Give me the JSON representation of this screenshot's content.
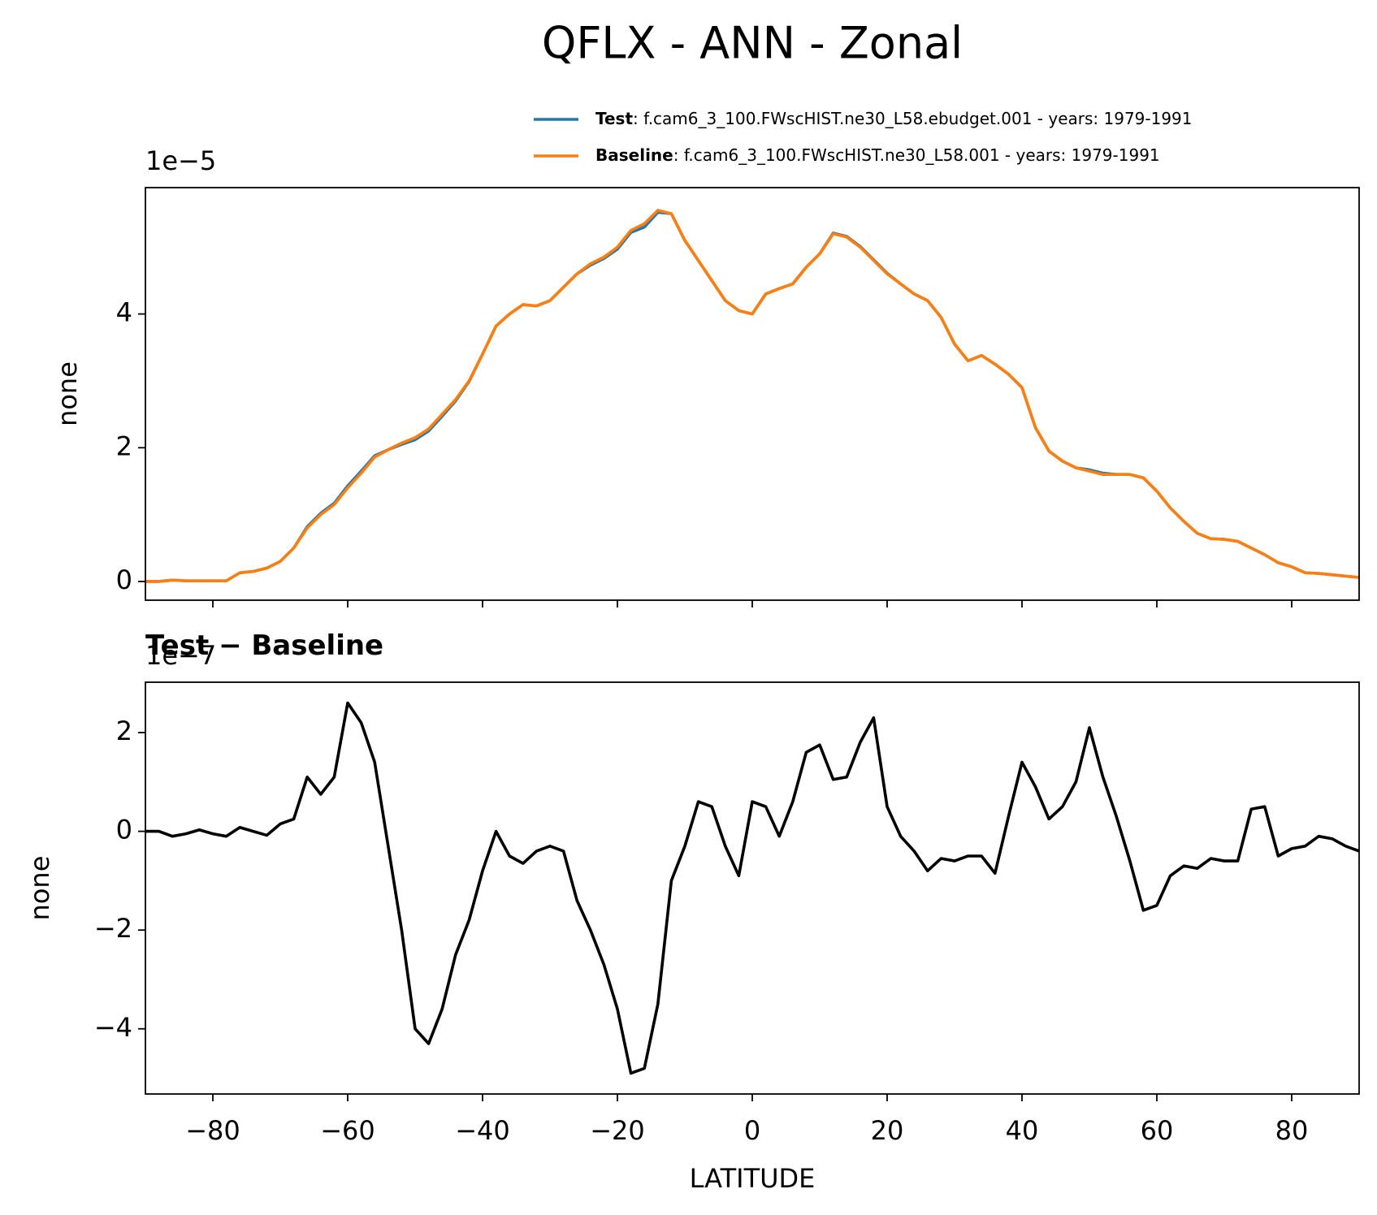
{
  "title": "QFLX - ANN - Zonal",
  "chart_data": [
    {
      "type": "line",
      "offset_text": "1e−5",
      "ylabel": "none",
      "x": [
        -90,
        -88,
        -86,
        -84,
        -82,
        -80,
        -78,
        -76,
        -74,
        -72,
        -70,
        -68,
        -66,
        -64,
        -62,
        -60,
        -58,
        -56,
        -54,
        -52,
        -50,
        -48,
        -46,
        -44,
        -42,
        -40,
        -38,
        -36,
        -34,
        -32,
        -30,
        -28,
        -26,
        -24,
        -22,
        -20,
        -18,
        -16,
        -14,
        -12,
        -10,
        -8,
        -6,
        -4,
        -2,
        0,
        2,
        4,
        6,
        8,
        10,
        12,
        14,
        16,
        18,
        20,
        22,
        24,
        26,
        28,
        30,
        32,
        34,
        36,
        38,
        40,
        42,
        44,
        46,
        48,
        50,
        52,
        54,
        56,
        58,
        60,
        62,
        64,
        66,
        68,
        70,
        72,
        74,
        76,
        78,
        80,
        82,
        84,
        86,
        88,
        90
      ],
      "series": [
        {
          "name": "Test",
          "description": ": f.cam6_3_100.FWscHIST.ne30_L58.ebudget.001 - years: 1979-1991",
          "color": "#1f77b4",
          "values": [
            0,
            0,
            0.02,
            0.01,
            0.01,
            0.01,
            0.01,
            0.13,
            0.15,
            0.2,
            0.3,
            0.5,
            0.82,
            1.02,
            1.17,
            1.43,
            1.65,
            1.88,
            1.97,
            2.05,
            2.12,
            2.25,
            2.47,
            2.7,
            2.99,
            3.4,
            3.82,
            4.0,
            4.14,
            4.12,
            4.2,
            4.4,
            4.6,
            4.73,
            4.83,
            4.97,
            5.22,
            5.3,
            5.52,
            5.5,
            5.1,
            4.8,
            4.5,
            4.2,
            4.05,
            4.0,
            4.3,
            4.38,
            4.45,
            4.7,
            4.9,
            5.21,
            5.16,
            5.01,
            4.81,
            4.61,
            4.45,
            4.3,
            4.2,
            3.95,
            3.55,
            3.3,
            3.38,
            3.25,
            3.1,
            2.9,
            2.3,
            1.95,
            1.8,
            1.7,
            1.67,
            1.62,
            1.6,
            1.6,
            1.55,
            1.35,
            1.1,
            0.9,
            0.72,
            0.64,
            0.63,
            0.6,
            0.5,
            0.4,
            0.28,
            0.22,
            0.13,
            0.12,
            0.1,
            0.08,
            0.06
          ]
        },
        {
          "name": "Baseline",
          "description": ": f.cam6_3_100.FWscHIST.ne30_L58.001 - years: 1979-1991",
          "color": "#ff7f0e",
          "values": [
            0,
            0,
            0.02,
            0.01,
            0.01,
            0.01,
            0.01,
            0.13,
            0.15,
            0.2,
            0.3,
            0.5,
            0.8,
            1.0,
            1.15,
            1.4,
            1.62,
            1.86,
            1.97,
            2.07,
            2.15,
            2.28,
            2.5,
            2.72,
            3.0,
            3.4,
            3.82,
            4.0,
            4.14,
            4.12,
            4.2,
            4.4,
            4.6,
            4.75,
            4.85,
            5.0,
            5.25,
            5.35,
            5.55,
            5.5,
            5.1,
            4.8,
            4.5,
            4.2,
            4.05,
            4.0,
            4.3,
            4.38,
            4.45,
            4.7,
            4.9,
            5.2,
            5.15,
            5.0,
            4.8,
            4.6,
            4.45,
            4.3,
            4.2,
            3.95,
            3.55,
            3.3,
            3.38,
            3.25,
            3.1,
            2.9,
            2.3,
            1.95,
            1.8,
            1.7,
            1.65,
            1.6,
            1.6,
            1.6,
            1.55,
            1.35,
            1.1,
            0.9,
            0.72,
            0.64,
            0.63,
            0.6,
            0.5,
            0.4,
            0.28,
            0.22,
            0.13,
            0.12,
            0.1,
            0.08,
            0.06
          ]
        }
      ],
      "xlim": [
        -90,
        90
      ],
      "xticks": [
        -80,
        -60,
        -40,
        -20,
        0,
        20,
        40,
        60,
        80
      ],
      "show_xtick_labels": false,
      "ylim": [
        -0.28,
        5.89
      ],
      "yticks": [
        0,
        2,
        4
      ]
    },
    {
      "type": "line",
      "title": "Test − Baseline",
      "offset_text": "1e−7",
      "ylabel": "none",
      "xlabel": "LATITUDE",
      "x": [
        -90,
        -88,
        -86,
        -84,
        -82,
        -80,
        -78,
        -76,
        -74,
        -72,
        -70,
        -68,
        -66,
        -64,
        -62,
        -60,
        -58,
        -56,
        -54,
        -52,
        -50,
        -48,
        -46,
        -44,
        -42,
        -40,
        -38,
        -36,
        -34,
        -32,
        -30,
        -28,
        -26,
        -24,
        -22,
        -20,
        -18,
        -16,
        -14,
        -12,
        -10,
        -8,
        -6,
        -4,
        -2,
        0,
        2,
        4,
        6,
        8,
        10,
        12,
        14,
        16,
        18,
        20,
        22,
        24,
        26,
        28,
        30,
        32,
        34,
        36,
        38,
        40,
        42,
        44,
        46,
        48,
        50,
        52,
        54,
        56,
        58,
        60,
        62,
        64,
        66,
        68,
        70,
        72,
        74,
        76,
        78,
        80,
        82,
        84,
        86,
        88,
        90
      ],
      "series": [
        {
          "color": "#000000",
          "values": [
            0,
            0,
            -0.1,
            -0.05,
            0.03,
            -0.05,
            -0.1,
            0.08,
            0,
            -0.08,
            0.15,
            0.25,
            1.1,
            0.75,
            1.1,
            2.6,
            2.2,
            1.4,
            -0.3,
            -2.0,
            -4.0,
            -4.3,
            -3.6,
            -2.5,
            -1.8,
            -0.8,
            0,
            -0.5,
            -0.65,
            -0.4,
            -0.3,
            -0.4,
            -1.4,
            -2.0,
            -2.7,
            -3.6,
            -4.9,
            -4.8,
            -3.5,
            -1.0,
            -0.3,
            0.6,
            0.5,
            -0.3,
            -0.9,
            0.6,
            0.5,
            -0.1,
            0.6,
            1.6,
            1.75,
            1.05,
            1.1,
            1.8,
            2.3,
            0.5,
            -0.1,
            -0.4,
            -0.8,
            -0.55,
            -0.6,
            -0.5,
            -0.5,
            -0.85,
            0.3,
            1.4,
            0.9,
            0.25,
            0.5,
            1.0,
            2.1,
            1.1,
            0.3,
            -0.6,
            -1.6,
            -1.5,
            -0.9,
            -0.7,
            -0.75,
            -0.55,
            -0.6,
            -0.6,
            0.45,
            0.5,
            -0.5,
            -0.35,
            -0.3,
            -0.1,
            -0.15,
            -0.3,
            -0.4
          ]
        }
      ],
      "xlim": [
        -90,
        90
      ],
      "xticks": [
        {
          "value": -80,
          "label": "−80"
        },
        {
          "value": -60,
          "label": "−60"
        },
        {
          "value": -40,
          "label": "−40"
        },
        {
          "value": -20,
          "label": "−20"
        },
        0,
        20,
        40,
        60,
        80
      ],
      "show_xtick_labels": true,
      "ylim": [
        -5.32,
        3.02
      ],
      "yticks": [
        {
          "value": -4,
          "label": "−4"
        },
        {
          "value": -2,
          "label": "−2"
        },
        0,
        2
      ]
    }
  ]
}
